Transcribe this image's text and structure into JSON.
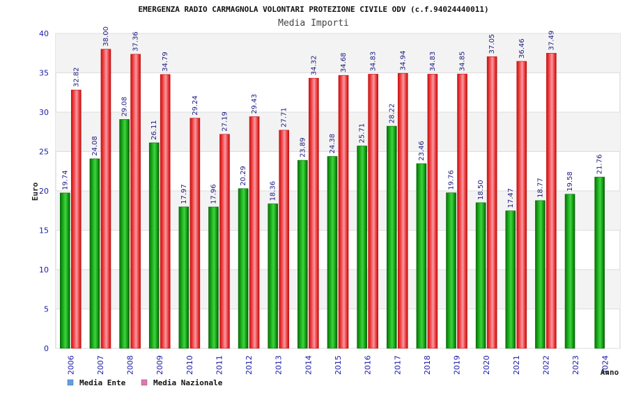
{
  "chart_data": {
    "type": "bar",
    "title": "EMERGENZA RADIO CARMAGNOLA VOLONTARI PROTEZIONE CIVILE ODV (c.f.94024440011)",
    "subtitle": "Media Importi",
    "xlabel": "Anno",
    "ylabel": "Euro",
    "ylim": [
      0,
      40
    ],
    "yticks": [
      0,
      5,
      10,
      15,
      20,
      25,
      30,
      35,
      40
    ],
    "grid": true,
    "legend_position": "bottom-left",
    "categories": [
      "2006",
      "2007",
      "2008",
      "2009",
      "2010",
      "2011",
      "2012",
      "2013",
      "2014",
      "2015",
      "2016",
      "2017",
      "2018",
      "2019",
      "2020",
      "2021",
      "2022",
      "2023",
      "2024"
    ],
    "series": [
      {
        "name": "Media Ente",
        "color": "#22bb22",
        "legend_color": "#5aa0e6",
        "values": [
          19.74,
          24.08,
          29.08,
          26.11,
          17.97,
          17.96,
          20.29,
          18.36,
          23.89,
          24.38,
          25.71,
          28.22,
          23.46,
          19.76,
          18.5,
          17.47,
          18.77,
          19.58,
          21.76
        ],
        "labels": [
          "19.74",
          "24.08",
          "29.08",
          "26.11",
          "17.97",
          "17.96",
          "20.29",
          "18.36",
          "23.89",
          "24.38",
          "25.71",
          "28.22",
          "23.46",
          "19.76",
          "18.50",
          "17.47",
          "18.77",
          "19.58",
          "21.76"
        ]
      },
      {
        "name": "Media Nazionale",
        "color": "#ee3333",
        "legend_color": "#e673b0",
        "values": [
          32.82,
          38.0,
          37.36,
          34.79,
          29.24,
          27.19,
          29.43,
          27.71,
          34.32,
          34.68,
          34.83,
          34.94,
          34.83,
          34.85,
          37.05,
          36.46,
          37.49,
          null,
          null
        ],
        "labels": [
          "32.82",
          "38.00",
          "37.36",
          "34.79",
          "29.24",
          "27.19",
          "29.43",
          "27.71",
          "34.32",
          "34.68",
          "34.83",
          "34.94",
          "34.83",
          "34.85",
          "37.05",
          "36.46",
          "37.49",
          "",
          ""
        ]
      }
    ]
  }
}
